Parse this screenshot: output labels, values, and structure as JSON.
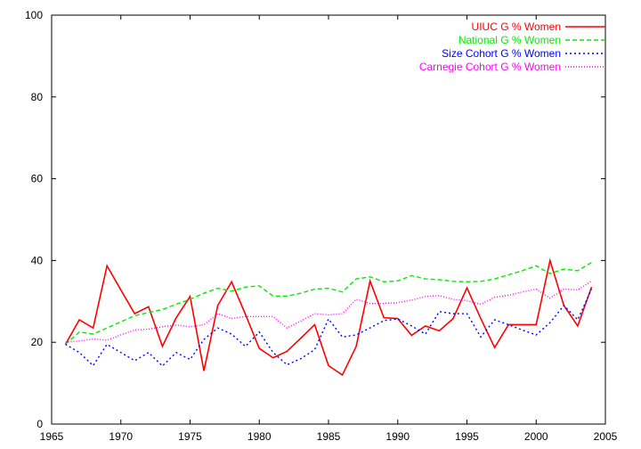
{
  "chart_data": {
    "type": "line",
    "title": "",
    "xlabel": "",
    "ylabel": "",
    "xlim": [
      1965,
      2005
    ],
    "ylim": [
      0,
      100
    ],
    "grid": false,
    "legend_position": "top-right",
    "x_ticks": [
      "1965",
      "1970",
      "1975",
      "1980",
      "1985",
      "1990",
      "1995",
      "2000",
      "2005"
    ],
    "y_ticks": [
      "0",
      "20",
      "40",
      "60",
      "80",
      "100"
    ],
    "x": [
      1966,
      1967,
      1968,
      1969,
      1970,
      1971,
      1972,
      1973,
      1974,
      1975,
      1976,
      1977,
      1978,
      1979,
      1980,
      1981,
      1982,
      1983,
      1984,
      1985,
      1986,
      1987,
      1988,
      1989,
      1990,
      1991,
      1992,
      1993,
      1994,
      1995,
      1996,
      1997,
      1998,
      1999,
      2000,
      2001,
      2002,
      2003,
      2004
    ],
    "series": [
      {
        "name": "UIUC G % Women",
        "color": "#ff0000",
        "dash": "solid",
        "values": [
          19.5,
          25.5,
          23.5,
          38.7,
          32.8,
          27.0,
          28.7,
          19.0,
          26.0,
          31.2,
          13.0,
          29.0,
          34.8,
          26.8,
          18.5,
          16.2,
          17.8,
          21.0,
          24.3,
          14.3,
          12.0,
          19.0,
          35.0,
          26.0,
          25.8,
          21.7,
          24.0,
          22.8,
          25.8,
          33.3,
          25.8,
          18.7,
          24.3,
          24.3,
          24.3,
          40.0,
          29.0,
          24.0,
          33.5
        ]
      },
      {
        "name": "National G % Women",
        "color": "#00ee00",
        "dash": "dashed",
        "values": [
          19.5,
          22.5,
          22.0,
          23.5,
          25.0,
          26.5,
          27.3,
          28.0,
          29.3,
          30.5,
          32.0,
          33.2,
          32.5,
          33.5,
          33.8,
          31.3,
          31.3,
          32.0,
          33.0,
          33.2,
          32.3,
          35.5,
          36.0,
          34.8,
          35.0,
          36.3,
          35.5,
          35.3,
          34.9,
          34.8,
          34.9,
          35.5,
          36.5,
          37.5,
          38.7,
          36.8,
          37.9,
          37.5,
          39.5
        ]
      },
      {
        "name": "Size Cohort G % Women",
        "color": "#0000ff",
        "dash": "dotted",
        "values": [
          19.5,
          17.5,
          14.3,
          19.5,
          17.5,
          15.5,
          17.5,
          14.2,
          17.5,
          15.8,
          20.7,
          23.5,
          22.0,
          19.0,
          22.5,
          17.5,
          14.5,
          16.0,
          18.2,
          25.7,
          21.3,
          21.8,
          23.5,
          25.3,
          25.7,
          24.0,
          22.0,
          27.5,
          27.0,
          27.0,
          21.3,
          25.5,
          24.3,
          23.0,
          21.8,
          24.8,
          29.0,
          25.5,
          33.0
        ]
      },
      {
        "name": "Carnegie Cohort G % Women",
        "color": "#ff00ff",
        "dash": "dotted-fine",
        "values": [
          20.0,
          20.3,
          20.8,
          20.5,
          21.8,
          23.0,
          23.2,
          23.8,
          24.2,
          23.8,
          24.3,
          27.0,
          25.8,
          26.3,
          26.3,
          26.3,
          23.5,
          25.2,
          27.0,
          26.7,
          27.0,
          30.5,
          29.5,
          29.5,
          29.7,
          30.3,
          31.2,
          31.4,
          30.5,
          30.2,
          29.3,
          31.0,
          31.5,
          32.3,
          33.0,
          30.8,
          33.0,
          32.8,
          35.0
        ]
      }
    ]
  }
}
